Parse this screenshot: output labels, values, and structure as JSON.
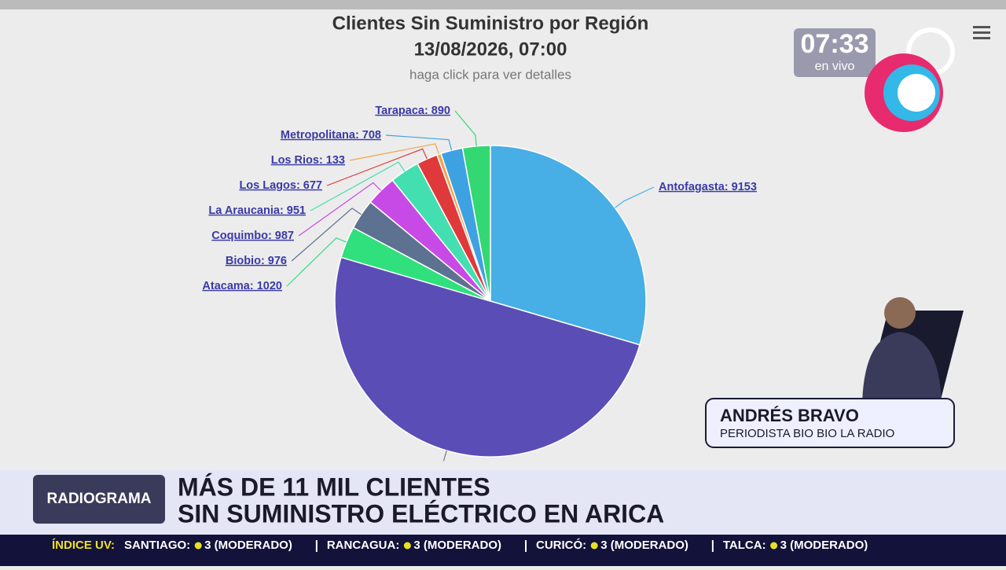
{
  "chart_data": {
    "type": "pie",
    "title": "Clientes Sin Suministro por Región",
    "subtitle": "13/08/2026, 07:00",
    "note": "haga click para ver detalles",
    "labels": [
      "Antofagasta: 9153",
      null,
      "Atacama: 1020",
      "Biobio: 976",
      "Coquimbo: 987",
      "La Araucania: 951",
      "Los Lagos: 677",
      "Los Rios: 133",
      "Metropolitana: 708",
      "Tarapaca: 890"
    ],
    "values": [
      9153,
      15500,
      1020,
      976,
      987,
      951,
      677,
      133,
      708,
      890
    ],
    "colors": [
      "#47aee6",
      "#5a4db6",
      "#2fe07c",
      "#5d7190",
      "#c84ae6",
      "#43dfb1",
      "#e0393b",
      "#f0a54a",
      "#3ea2e2",
      "#33d873"
    ]
  },
  "clock": {
    "time": "07:33",
    "status": "en vivo"
  },
  "reporter": {
    "name": "ANDRÉS BRAVO",
    "role": "PERIODISTA BIO BIO LA RADIO"
  },
  "program": "RADIOGRAMA",
  "headline": [
    "MÁS DE 11 MIL CLIENTES",
    "SIN SUMINISTRO ELÉCTRICO EN ARICA"
  ],
  "ticker": {
    "title": "ÍNDICE UV:",
    "items": [
      {
        "city": "SANTIAGO:",
        "level": "3 (MODERADO)"
      },
      {
        "city": "RANCAGUA:",
        "level": "3 (MODERADO)"
      },
      {
        "city": "CURICÓ:",
        "level": "3 (MODERADO)"
      },
      {
        "city": "TALCA:",
        "level": "3 (MODERADO)"
      }
    ]
  }
}
